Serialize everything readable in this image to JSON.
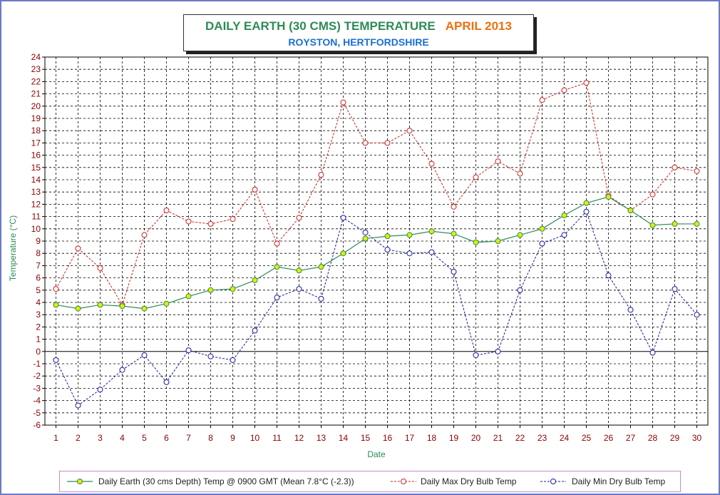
{
  "title": {
    "main": "DAILY EARTH (30 CMS) TEMPERATURE",
    "month": "APRIL 2013",
    "subtitle": "ROYSTON, HERTFORDSHIRE"
  },
  "colors": {
    "earth": "#2e8b57",
    "earth_marker": "#e0f000",
    "max": "#cc2222",
    "min": "#1a1a99",
    "axis_tick_text": "#8b0000",
    "axis_title": "#2e8b57",
    "grid": "#000000",
    "frame": "#6a7ac8"
  },
  "chart_data": {
    "type": "line",
    "title": "DAILY EARTH (30 CMS) TEMPERATURE APRIL 2013",
    "subtitle": "ROYSTON, HERTFORDSHIRE",
    "xlabel": "Date",
    "ylabel": "Temperature (°C)",
    "ylim": [
      -6,
      24
    ],
    "xlim": [
      1,
      30
    ],
    "grid": true,
    "legend_position": "bottom",
    "x": [
      1,
      2,
      3,
      4,
      5,
      6,
      7,
      8,
      9,
      10,
      11,
      12,
      13,
      14,
      15,
      16,
      17,
      18,
      19,
      20,
      21,
      22,
      23,
      24,
      25,
      26,
      27,
      28,
      29,
      30
    ],
    "x_tick_labels": [
      "1",
      "2",
      "3",
      "4",
      "5",
      "6",
      "7",
      "8",
      "9",
      "10",
      "11",
      "12",
      "13",
      "14",
      "15",
      "16",
      "17",
      "18",
      "19",
      "20",
      "21",
      "22",
      "23",
      "24",
      "25",
      "26",
      "27",
      "28",
      "29",
      "30"
    ],
    "y_tick_labels": [
      "-6",
      "-5",
      "-4",
      "-3",
      "-2",
      "-1",
      "0",
      "1",
      "2",
      "3",
      "4",
      "5",
      "6",
      "7",
      "8",
      "9",
      "10",
      "11",
      "12",
      "13",
      "14",
      "15",
      "16",
      "17",
      "18",
      "19",
      "20",
      "21",
      "22",
      "23",
      "24"
    ],
    "series": [
      {
        "name": "Daily Earth (30 cms Depth) Temp @ 0900 GMT (Mean 7.8°C (-2.3))",
        "style": "solid",
        "values": [
          3.8,
          3.5,
          3.8,
          3.7,
          3.5,
          3.9,
          4.5,
          5.0,
          5.1,
          5.8,
          6.9,
          6.6,
          6.9,
          8.0,
          9.2,
          9.4,
          9.5,
          9.8,
          9.6,
          8.9,
          9.0,
          9.5,
          10.0,
          11.1,
          12.1,
          12.6,
          11.5,
          10.3,
          10.4,
          10.4
        ]
      },
      {
        "name": "Daily Max Dry Bulb Temp",
        "style": "dashed",
        "values": [
          5.1,
          8.4,
          6.8,
          3.8,
          9.5,
          11.5,
          10.6,
          10.4,
          10.8,
          13.2,
          8.8,
          10.9,
          14.4,
          20.3,
          17.0,
          17.0,
          18.0,
          15.3,
          11.8,
          14.2,
          15.5,
          14.5,
          20.5,
          21.3,
          21.9,
          12.7,
          11.5,
          12.8,
          15.0,
          14.7
        ]
      },
      {
        "name": "Daily Min Dry Bulb Temp",
        "style": "dashed",
        "values": [
          -0.7,
          -4.4,
          -3.1,
          -1.5,
          -0.3,
          -2.5,
          0.1,
          -0.4,
          -0.7,
          1.7,
          4.4,
          5.1,
          4.3,
          10.9,
          9.7,
          8.3,
          8.0,
          8.1,
          6.5,
          -0.3,
          0.0,
          5.0,
          8.8,
          9.5,
          11.4,
          6.2,
          3.4,
          -0.1,
          5.1,
          3.0
        ]
      }
    ]
  }
}
